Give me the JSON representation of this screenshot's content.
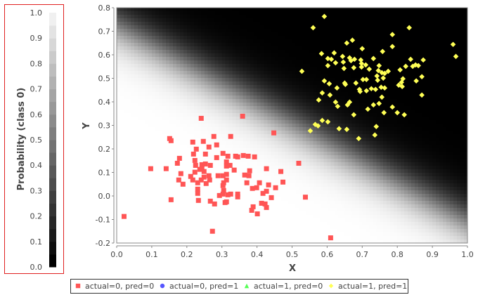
{
  "chart_data": {
    "type": "scatter",
    "xlabel": "X",
    "ylabel": "Y",
    "xlim": [
      0.0,
      1.0
    ],
    "ylim": [
      -0.2,
      0.8
    ],
    "xticks": [
      "0.0",
      "0.1",
      "0.2",
      "0.3",
      "0.4",
      "0.5",
      "0.6",
      "0.7",
      "0.8",
      "0.9",
      "1.0"
    ],
    "yticks": [
      "-0.2",
      "-0.1",
      "0.0",
      "0.1",
      "0.2",
      "0.3",
      "0.4",
      "0.5",
      "0.6",
      "0.7",
      "0.8"
    ],
    "grid": false,
    "background": {
      "type": "heatmap",
      "quantity": "probability of class 0",
      "model": {
        "w_x": -15,
        "w_y": -18,
        "bias": 13.05
      }
    },
    "colorbar": {
      "label": "Probability (class 0)",
      "range": [
        0.0,
        1.0
      ],
      "steps": 20,
      "ticks": [
        "0.0",
        "0.1",
        "0.2",
        "0.3",
        "0.4",
        "0.5",
        "0.6",
        "0.7",
        "0.8",
        "0.9",
        "1.0"
      ]
    },
    "legend": {
      "placement": "bottom",
      "entries": [
        {
          "label": "actual=0, pred=0",
          "color": "#ff5555",
          "marker": "square"
        },
        {
          "label": "actual=0, pred=1",
          "color": "#5555ff",
          "marker": "circle"
        },
        {
          "label": "actual=1, pred=0",
          "color": "#55ff55",
          "marker": "triangle"
        },
        {
          "label": "actual=1, pred=1",
          "color": "#ffff55",
          "marker": "diamond"
        }
      ]
    },
    "series": [
      {
        "name": "actual=0, pred=0",
        "color": "#ff5555",
        "marker": "square",
        "points": [
          [
            0.241,
            0.33
          ],
          [
            0.359,
            0.339
          ],
          [
            0.448,
            0.268
          ],
          [
            0.151,
            0.244
          ],
          [
            0.155,
            0.235
          ],
          [
            0.277,
            0.253
          ],
          [
            0.325,
            0.253
          ],
          [
            0.217,
            0.229
          ],
          [
            0.247,
            0.232
          ],
          [
            0.285,
            0.217
          ],
          [
            0.263,
            0.208
          ],
          [
            0.227,
            0.199
          ],
          [
            0.219,
            0.178
          ],
          [
            0.253,
            0.178
          ],
          [
            0.303,
            0.181
          ],
          [
            0.317,
            0.169
          ],
          [
            0.339,
            0.169
          ],
          [
            0.345,
            0.166
          ],
          [
            0.361,
            0.172
          ],
          [
            0.375,
            0.169
          ],
          [
            0.393,
            0.166
          ],
          [
            0.285,
            0.163
          ],
          [
            0.179,
            0.16
          ],
          [
            0.173,
            0.139
          ],
          [
            0.223,
            0.151
          ],
          [
            0.225,
            0.13
          ],
          [
            0.243,
            0.133
          ],
          [
            0.253,
            0.136
          ],
          [
            0.267,
            0.13
          ],
          [
            0.313,
            0.145
          ],
          [
            0.313,
            0.127
          ],
          [
            0.323,
            0.13
          ],
          [
            0.335,
            0.11
          ],
          [
            0.097,
            0.116
          ],
          [
            0.141,
            0.116
          ],
          [
            0.427,
            0.116
          ],
          [
            0.468,
            0.104
          ],
          [
            0.519,
            0.139
          ],
          [
            0.183,
            0.095
          ],
          [
            0.223,
            0.101
          ],
          [
            0.243,
            0.116
          ],
          [
            0.249,
            0.104
          ],
          [
            0.237,
            0.113
          ],
          [
            0.379,
            0.107
          ],
          [
            0.365,
            0.089
          ],
          [
            0.377,
            0.086
          ],
          [
            0.177,
            0.068
          ],
          [
            0.189,
            0.05
          ],
          [
            0.211,
            0.083
          ],
          [
            0.217,
            0.068
          ],
          [
            0.231,
            0.056
          ],
          [
            0.241,
            0.068
          ],
          [
            0.249,
            0.08
          ],
          [
            0.263,
            0.086
          ],
          [
            0.265,
            0.068
          ],
          [
            0.255,
            0.053
          ],
          [
            0.289,
            0.086
          ],
          [
            0.303,
            0.086
          ],
          [
            0.313,
            0.092
          ],
          [
            0.313,
            0.068
          ],
          [
            0.305,
            0.056
          ],
          [
            0.303,
            0.044
          ],
          [
            0.371,
            0.056
          ],
          [
            0.407,
            0.056
          ],
          [
            0.433,
            0.047
          ],
          [
            0.474,
            0.059
          ],
          [
            0.453,
            0.035
          ],
          [
            0.387,
            0.032
          ],
          [
            0.399,
            0.035
          ],
          [
            0.305,
            0.023
          ],
          [
            0.231,
            0.029
          ],
          [
            0.231,
            0.011
          ],
          [
            0.293,
            0.002
          ],
          [
            0.303,
            0.008
          ],
          [
            0.317,
            0.005
          ],
          [
            0.325,
            0.008
          ],
          [
            0.345,
            0.008
          ],
          [
            0.345,
            -0.004
          ],
          [
            0.417,
            0.011
          ],
          [
            0.427,
            0.02
          ],
          [
            0.441,
            -0.007
          ],
          [
            0.155,
            -0.016
          ],
          [
            0.233,
            -0.019
          ],
          [
            0.267,
            -0.022
          ],
          [
            0.279,
            -0.034
          ],
          [
            0.309,
            -0.028
          ],
          [
            0.313,
            -0.025
          ],
          [
            0.389,
            -0.046
          ],
          [
            0.385,
            -0.061
          ],
          [
            0.401,
            -0.076
          ],
          [
            0.413,
            -0.031
          ],
          [
            0.423,
            -0.034
          ],
          [
            0.427,
            -0.049
          ],
          [
            0.021,
            -0.087
          ],
          [
            0.273,
            -0.15
          ],
          [
            0.538,
            -0.005
          ],
          [
            0.61,
            -0.178
          ]
        ]
      },
      {
        "name": "actual=0, pred=1",
        "color": "#5555ff",
        "marker": "circle",
        "points": []
      },
      {
        "name": "actual=1, pred=0",
        "color": "#55ff55",
        "marker": "triangle",
        "points": []
      },
      {
        "name": "actual=1, pred=1",
        "color": "#ffff55",
        "marker": "diamond",
        "points": [
          [
            0.592,
            0.763
          ],
          [
            0.56,
            0.715
          ],
          [
            0.834,
            0.715
          ],
          [
            0.786,
            0.686
          ],
          [
            0.959,
            0.644
          ],
          [
            0.967,
            0.593
          ],
          [
            0.672,
            0.662
          ],
          [
            0.656,
            0.65
          ],
          [
            0.786,
            0.635
          ],
          [
            0.7,
            0.626
          ],
          [
            0.758,
            0.614
          ],
          [
            0.584,
            0.605
          ],
          [
            0.62,
            0.608
          ],
          [
            0.644,
            0.593
          ],
          [
            0.664,
            0.587
          ],
          [
            0.678,
            0.581
          ],
          [
            0.602,
            0.584
          ],
          [
            0.612,
            0.581
          ],
          [
            0.624,
            0.566
          ],
          [
            0.646,
            0.569
          ],
          [
            0.668,
            0.575
          ],
          [
            0.696,
            0.578
          ],
          [
            0.698,
            0.563
          ],
          [
            0.71,
            0.557
          ],
          [
            0.732,
            0.584
          ],
          [
            0.838,
            0.581
          ],
          [
            0.874,
            0.578
          ],
          [
            0.602,
            0.554
          ],
          [
            0.648,
            0.542
          ],
          [
            0.676,
            0.545
          ],
          [
            0.698,
            0.548
          ],
          [
            0.72,
            0.539
          ],
          [
            0.748,
            0.554
          ],
          [
            0.824,
            0.551
          ],
          [
            0.808,
            0.536
          ],
          [
            0.844,
            0.551
          ],
          [
            0.852,
            0.557
          ],
          [
            0.86,
            0.554
          ],
          [
            0.528,
            0.53
          ],
          [
            0.746,
            0.533
          ],
          [
            0.756,
            0.524
          ],
          [
            0.764,
            0.521
          ],
          [
            0.774,
            0.53
          ],
          [
            0.742,
            0.51
          ],
          [
            0.76,
            0.501
          ],
          [
            0.702,
            0.495
          ],
          [
            0.712,
            0.495
          ],
          [
            0.744,
            0.492
          ],
          [
            0.816,
            0.498
          ],
          [
            0.854,
            0.489
          ],
          [
            0.87,
            0.507
          ],
          [
            0.592,
            0.489
          ],
          [
            0.606,
            0.477
          ],
          [
            0.628,
            0.459
          ],
          [
            0.65,
            0.48
          ],
          [
            0.652,
            0.474
          ],
          [
            0.682,
            0.48
          ],
          [
            0.692,
            0.453
          ],
          [
            0.694,
            0.444
          ],
          [
            0.712,
            0.447
          ],
          [
            0.726,
            0.456
          ],
          [
            0.738,
            0.453
          ],
          [
            0.754,
            0.462
          ],
          [
            0.764,
            0.459
          ],
          [
            0.804,
            0.471
          ],
          [
            0.814,
            0.465
          ],
          [
            0.812,
            0.483
          ],
          [
            0.586,
            0.438
          ],
          [
            0.608,
            0.429
          ],
          [
            0.576,
            0.408
          ],
          [
            0.624,
            0.399
          ],
          [
            0.63,
            0.381
          ],
          [
            0.658,
            0.387
          ],
          [
            0.664,
            0.399
          ],
          [
            0.756,
            0.42
          ],
          [
            0.87,
            0.429
          ],
          [
            0.732,
            0.387
          ],
          [
            0.748,
            0.393
          ],
          [
            0.716,
            0.369
          ],
          [
            0.676,
            0.345
          ],
          [
            0.786,
            0.378
          ],
          [
            0.762,
            0.354
          ],
          [
            0.8,
            0.354
          ],
          [
            0.82,
            0.345
          ],
          [
            0.586,
            0.321
          ],
          [
            0.602,
            0.315
          ],
          [
            0.566,
            0.304
          ],
          [
            0.574,
            0.298
          ],
          [
            0.552,
            0.277
          ],
          [
            0.634,
            0.286
          ],
          [
            0.656,
            0.283
          ],
          [
            0.74,
            0.295
          ],
          [
            0.736,
            0.259
          ],
          [
            0.69,
            0.244
          ]
        ]
      }
    ]
  }
}
